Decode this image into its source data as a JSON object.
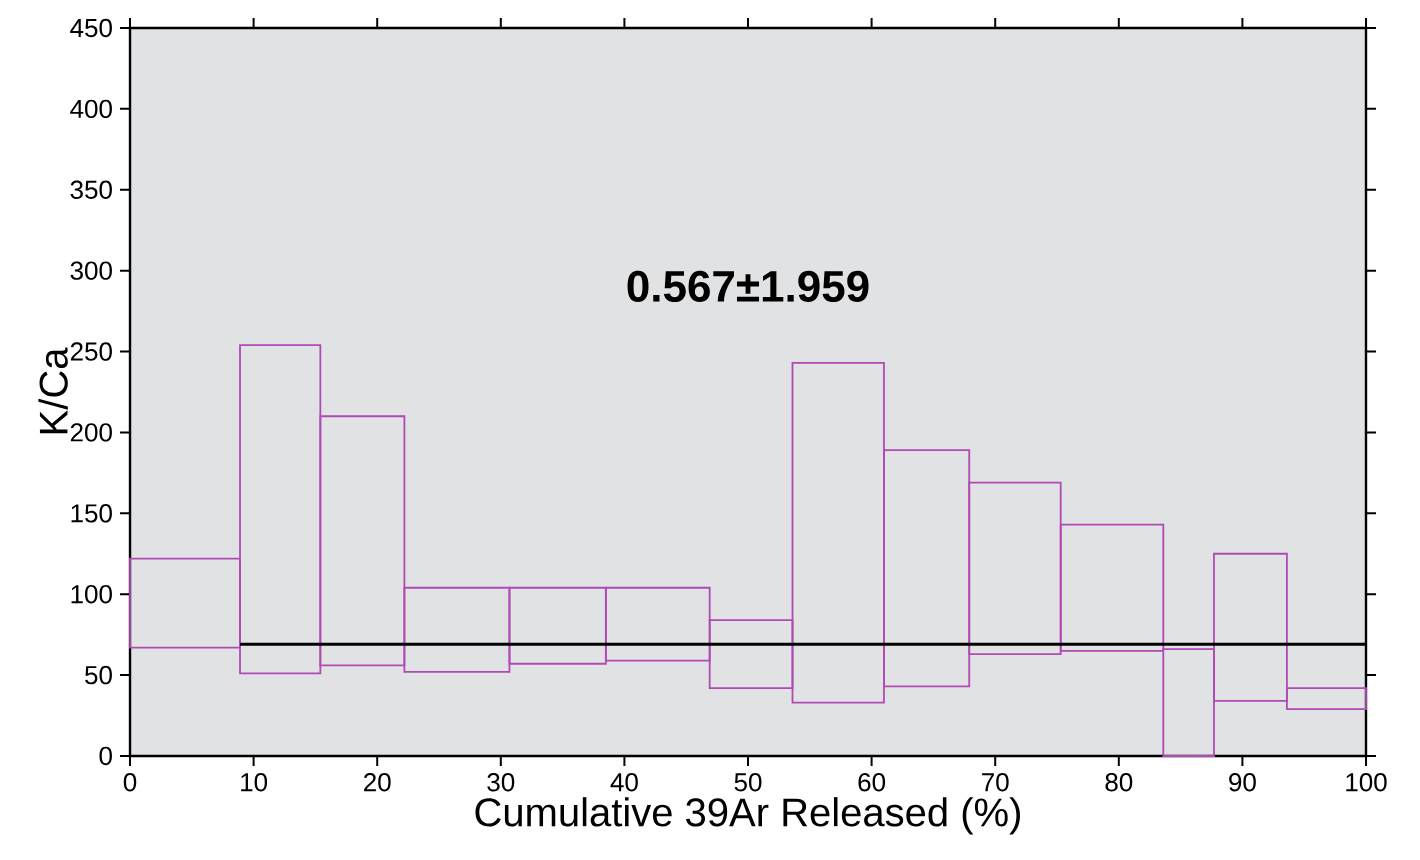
{
  "chart_data": {
    "type": "histogram",
    "xlabel": "Cumulative 39Ar Released (%)",
    "ylabel": "K/Ca",
    "bins": [
      0,
      8.9,
      15.4,
      22.2,
      30.7,
      38.5,
      46.9,
      53.6,
      61.0,
      67.9,
      75.3,
      83.6,
      87.7,
      93.6,
      100
    ],
    "base": [
      67,
      51,
      56,
      52,
      57,
      59,
      42,
      33,
      43,
      63,
      65,
      0,
      34,
      29
    ],
    "values": [
      55,
      203,
      154,
      52,
      47,
      45,
      42,
      210,
      146,
      106,
      78,
      66,
      91,
      13
    ],
    "color": "#b04ab4",
    "series": [
      {
        "type": "line",
        "x": [
          8.9,
          100
        ],
        "values": [
          69,
          69
        ],
        "color": "#000000"
      }
    ],
    "annotations": [
      "**0.567±1.959**"
    ],
    "xlim": [
      0,
      100
    ],
    "ylim": [
      0,
      450
    ],
    "xticks": [
      0,
      10,
      20,
      30,
      40,
      50,
      60,
      70,
      80,
      90,
      100
    ],
    "yticks": [
      0,
      50,
      100,
      150,
      200,
      250,
      300,
      350,
      400,
      450
    ],
    "grid": false
  }
}
